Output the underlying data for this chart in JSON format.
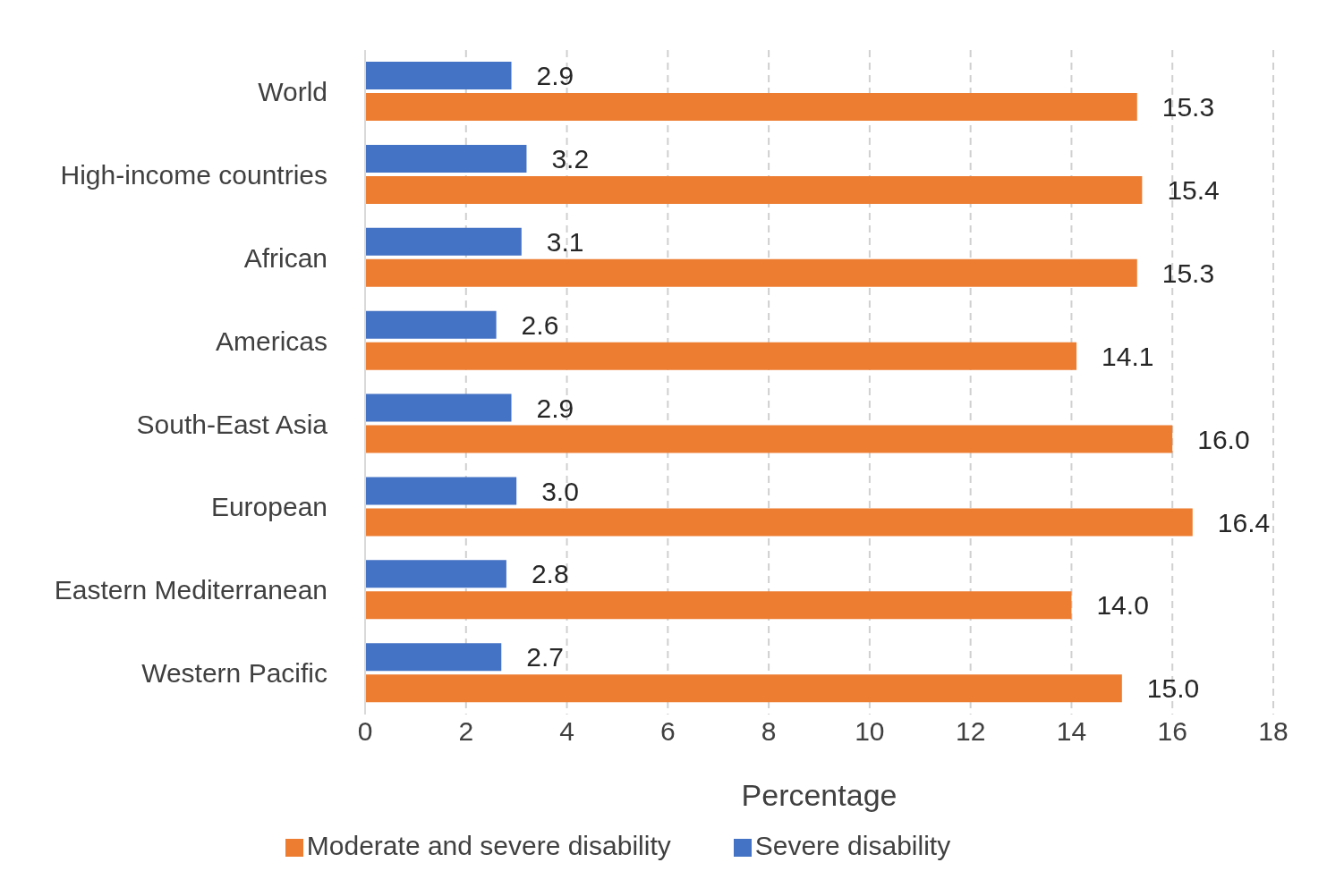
{
  "chart_data": {
    "type": "bar",
    "orientation": "horizontal",
    "xlabel": "Percentage",
    "categories": [
      "World",
      "High-income countries",
      "African",
      "Americas",
      "South-East Asia",
      "European",
      "Eastern Mediterranean",
      "Western Pacific"
    ],
    "series": [
      {
        "name": "Severe disability",
        "color": "#4472c4",
        "values": [
          2.9,
          3.2,
          3.1,
          2.6,
          2.9,
          3.0,
          2.8,
          2.7
        ],
        "value_labels": [
          "2.9",
          "3.2",
          "3.1",
          "2.6",
          "2.9",
          "3.0",
          "2.8",
          "2.7"
        ]
      },
      {
        "name": "Moderate and severe disability",
        "color": "#ed7d31",
        "values": [
          15.3,
          15.4,
          15.3,
          14.1,
          16.0,
          16.4,
          14.0,
          15.0
        ],
        "value_labels": [
          "15.3",
          "15.4",
          "15.3",
          "14.1",
          "16.0",
          "16.4",
          "14.0",
          "15.0"
        ]
      }
    ],
    "xlim": [
      0,
      18
    ],
    "xticks": [
      0,
      2,
      4,
      6,
      8,
      10,
      12,
      14,
      16,
      18
    ],
    "grid": "x",
    "legend": "bottom"
  }
}
